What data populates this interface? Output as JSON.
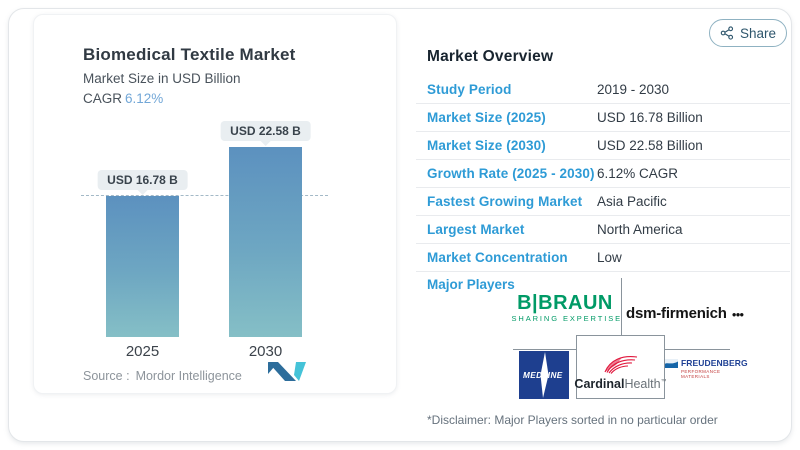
{
  "share": {
    "label": "Share"
  },
  "chart_panel": {
    "title": "Biomedical Textile Market",
    "subtitle": "Market Size in USD Billion",
    "cagr_label": "CAGR",
    "cagr_value": "6.12%",
    "source_label": "Source :",
    "source_value": "Mordor Intelligence"
  },
  "chart_data": {
    "type": "bar",
    "title": "Biomedical Textile Market",
    "ylabel": "Market Size in USD Billion",
    "categories": [
      "2025",
      "2030"
    ],
    "values": [
      16.78,
      22.58
    ],
    "value_labels": [
      "USD 16.78 B",
      "USD 22.58 B"
    ],
    "reference_line": 16.78,
    "cagr": "6.12%",
    "ylim": [
      0,
      22.58
    ],
    "grid": false,
    "bar_color_top": "#5c91bf",
    "bar_color_bottom": "#85bfc6"
  },
  "overview": {
    "title": "Market Overview",
    "rows": [
      {
        "label": "Study Period",
        "value": "2019 - 2030"
      },
      {
        "label": "Market Size (2025)",
        "value": "USD 16.78 Billion"
      },
      {
        "label": "Market Size (2030)",
        "value": "USD 22.58 Billion"
      },
      {
        "label": "Growth Rate (2025 - 2030)",
        "value": "6.12% CAGR"
      },
      {
        "label": "Fastest Growing Market",
        "value": "Asia Pacific"
      },
      {
        "label": "Largest Market",
        "value": "North America"
      },
      {
        "label": "Market Concentration",
        "value": "Low"
      }
    ],
    "major_players_label": "Major Players",
    "disclaimer": "*Disclaimer: Major Players sorted in no particular order"
  },
  "logos": {
    "bbraun": {
      "text": "B|BRAUN",
      "tagline": "SHARING EXPERTISE",
      "color": "#009a66"
    },
    "dsm": {
      "text": "dsm-firmenich",
      "dots": "●●●"
    },
    "medline": {
      "text": "MEDLINE",
      "bg": "#1e3f8f"
    },
    "cardinal": {
      "bold": "Cardinal",
      "light": "Health",
      "tm": "™",
      "red": "#e0173c"
    },
    "freudenberg": {
      "text": "FREUDENBERG",
      "tagline": "PERFORMANCE MATERIALS",
      "blue": "#1d3f94"
    }
  },
  "colors": {
    "accent_label_blue": "#2e9bd6",
    "heading_dark": "#18242f",
    "cagr_value_blue": "#72a7d7",
    "dashed_line": "#a3b9c7",
    "share_text": "#2e566c",
    "divider": "#e9ebee"
  }
}
